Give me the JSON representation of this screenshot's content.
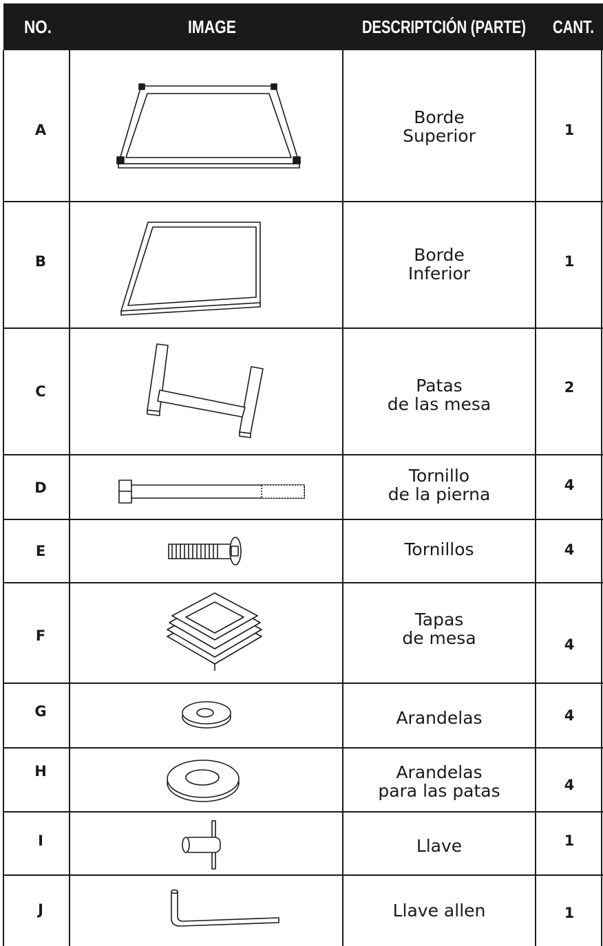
{
  "header": {
    "columns": [
      "NO.",
      "IMAGE",
      "DESCRIPTCIÓN (PARTE)",
      "CANT."
    ]
  },
  "rows": [
    {
      "no": "A",
      "description": [
        "Borde",
        "Superior"
      ],
      "quantity": 1
    },
    {
      "no": "B",
      "description": [
        "Borde",
        "Inferior"
      ],
      "quantity": 1
    },
    {
      "no": "C",
      "description": [
        "Patas",
        "de las mesa"
      ],
      "quantity": 2
    },
    {
      "no": "D",
      "description": [
        "Tornillo",
        "de la pierna"
      ],
      "quantity": 4
    },
    {
      "no": "E",
      "description": [
        "Tornillos"
      ],
      "quantity": 4
    },
    {
      "no": "F",
      "description": [
        "Tapas",
        "de mesa"
      ],
      "quantity": 4
    },
    {
      "no": "G",
      "description": [
        "Arandelas"
      ],
      "quantity": 4
    },
    {
      "no": "H",
      "description": [
        "Arandelas",
        "para las patas"
      ],
      "quantity": 4
    },
    {
      "no": "I",
      "description": [
        "Llave"
      ],
      "quantity": 1
    },
    {
      "no": "J",
      "description": [
        "Llave allen"
      ],
      "quantity": 1
    }
  ]
}
